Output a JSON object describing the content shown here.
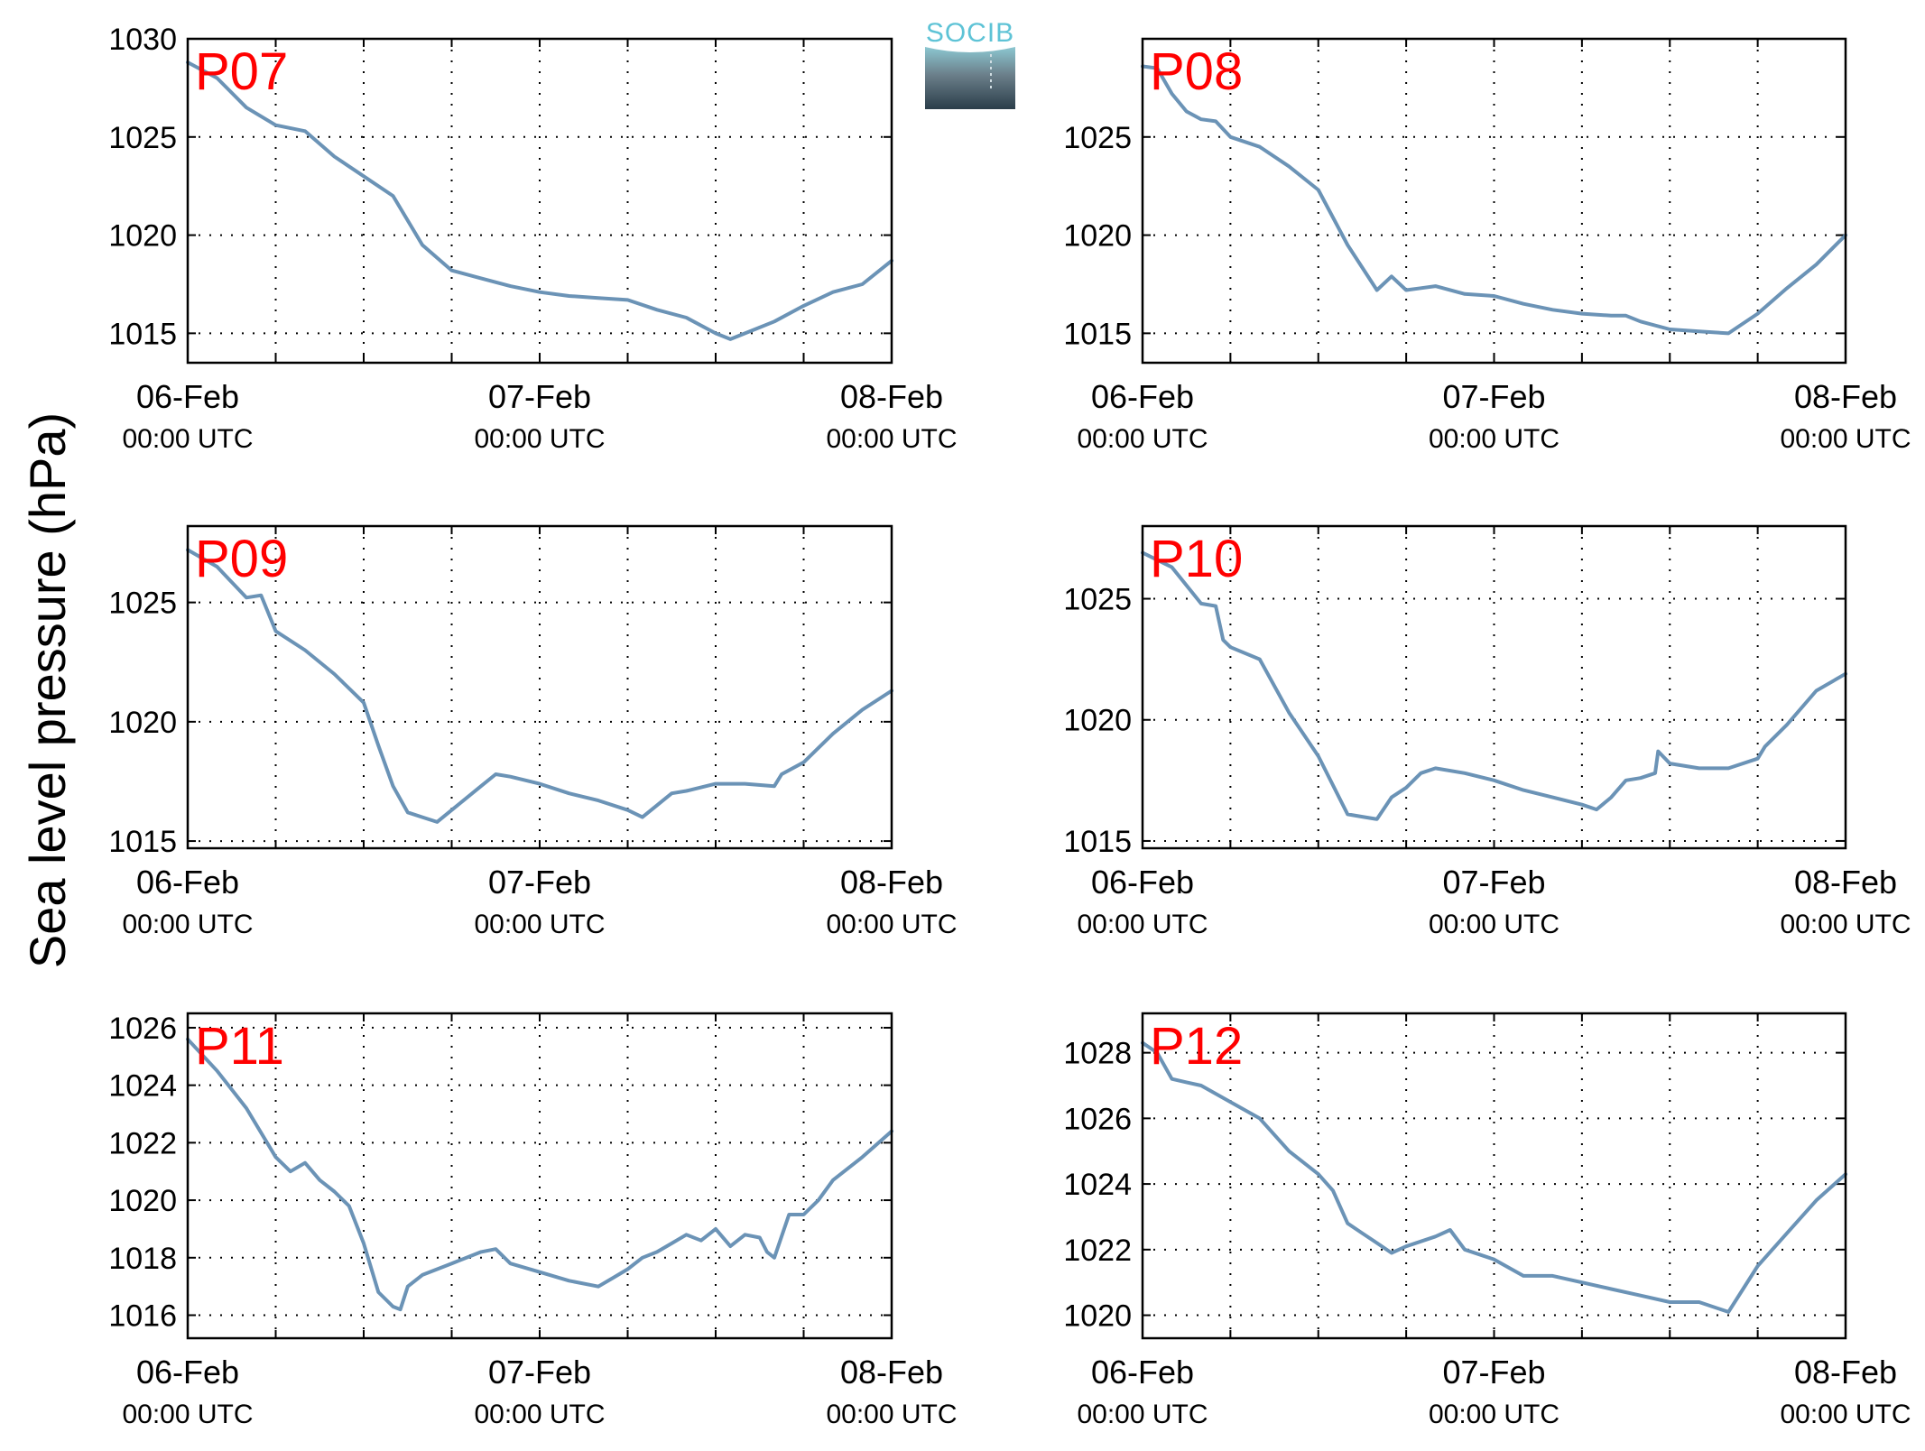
{
  "figure": {
    "ylabel": "Sea level pressure (hPa)",
    "logo_text": "SOCIB"
  },
  "colors": {
    "line": "#6b93b6",
    "panel_label": "#ff0000",
    "grid": "#000000",
    "logo_top": "#8cc7d1",
    "logo_bottom": "#2b3e4a"
  },
  "chart_data": [
    {
      "type": "line",
      "label": "P07",
      "xlim_hours": [
        0,
        48
      ],
      "ylim": [
        1013.5,
        1030
      ],
      "yticks": [
        1015,
        1020,
        1025,
        1030
      ],
      "xticks": [
        {
          "hour": 0,
          "date": "06-Feb",
          "time": "00:00 UTC"
        },
        {
          "hour": 24,
          "date": "07-Feb",
          "time": "00:00 UTC"
        },
        {
          "hour": 48,
          "date": "08-Feb",
          "time": "00:00 UTC"
        }
      ],
      "grid": true,
      "x": [
        0,
        2,
        4,
        6,
        8,
        10,
        12,
        14,
        16,
        18,
        20,
        22,
        24,
        26,
        28,
        30,
        32,
        34,
        36,
        37,
        38,
        40,
        42,
        44,
        46,
        48
      ],
      "values": [
        1028.8,
        1028.0,
        1026.5,
        1025.6,
        1025.3,
        1024.0,
        1023.0,
        1022.0,
        1019.5,
        1018.2,
        1017.8,
        1017.4,
        1017.1,
        1016.9,
        1016.8,
        1016.7,
        1016.2,
        1015.8,
        1015.0,
        1014.7,
        1015.0,
        1015.6,
        1016.4,
        1017.1,
        1017.5,
        1018.7
      ]
    },
    {
      "type": "line",
      "label": "P08",
      "xlim_hours": [
        0,
        48
      ],
      "ylim": [
        1013.5,
        1030
      ],
      "yticks": [
        1015,
        1020,
        1025
      ],
      "xticks": [
        {
          "hour": 0,
          "date": "06-Feb",
          "time": "00:00 UTC"
        },
        {
          "hour": 24,
          "date": "07-Feb",
          "time": "00:00 UTC"
        },
        {
          "hour": 48,
          "date": "08-Feb",
          "time": "00:00 UTC"
        }
      ],
      "grid": true,
      "x": [
        0,
        1,
        2,
        3,
        4,
        5,
        6,
        8,
        10,
        12,
        14,
        16,
        17,
        18,
        19,
        20,
        22,
        24,
        26,
        28,
        30,
        32,
        33,
        34,
        36,
        38,
        40,
        42,
        44,
        46,
        48
      ],
      "values": [
        1028.6,
        1028.5,
        1027.2,
        1026.3,
        1025.9,
        1025.8,
        1025.0,
        1024.5,
        1023.5,
        1022.3,
        1019.5,
        1017.2,
        1017.9,
        1017.2,
        1017.3,
        1017.4,
        1017.0,
        1016.9,
        1016.5,
        1016.2,
        1016.0,
        1015.9,
        1015.9,
        1015.6,
        1015.2,
        1015.1,
        1015.0,
        1016.0,
        1017.3,
        1018.5,
        1020.0
      ]
    },
    {
      "type": "line",
      "label": "P09",
      "xlim_hours": [
        0,
        48
      ],
      "ylim": [
        1014.7,
        1028.2
      ],
      "yticks": [
        1015,
        1020,
        1025
      ],
      "xticks": [
        {
          "hour": 0,
          "date": "06-Feb",
          "time": "00:00 UTC"
        },
        {
          "hour": 24,
          "date": "07-Feb",
          "time": "00:00 UTC"
        },
        {
          "hour": 48,
          "date": "08-Feb",
          "time": "00:00 UTC"
        }
      ],
      "grid": true,
      "x": [
        0,
        2,
        4,
        5,
        6,
        8,
        10,
        12,
        13,
        14,
        15,
        16,
        17,
        18,
        20,
        21,
        22,
        24,
        26,
        28,
        30,
        31,
        32,
        33,
        34,
        36,
        38,
        40,
        40.5,
        42,
        44,
        46,
        48
      ],
      "values": [
        1027.2,
        1026.5,
        1025.2,
        1025.3,
        1023.8,
        1023.0,
        1022.0,
        1020.8,
        1019.0,
        1017.3,
        1016.2,
        1016.0,
        1015.8,
        1016.3,
        1017.3,
        1017.8,
        1017.7,
        1017.4,
        1017.0,
        1016.7,
        1016.3,
        1016.0,
        1016.5,
        1017.0,
        1017.1,
        1017.4,
        1017.4,
        1017.3,
        1017.8,
        1018.3,
        1019.5,
        1020.5,
        1021.3
      ]
    },
    {
      "type": "line",
      "label": "P10",
      "xlim_hours": [
        0,
        48
      ],
      "ylim": [
        1014.7,
        1028.0
      ],
      "yticks": [
        1015,
        1020,
        1025
      ],
      "xticks": [
        {
          "hour": 0,
          "date": "06-Feb",
          "time": "00:00 UTC"
        },
        {
          "hour": 24,
          "date": "07-Feb",
          "time": "00:00 UTC"
        },
        {
          "hour": 48,
          "date": "08-Feb",
          "time": "00:00 UTC"
        }
      ],
      "grid": true,
      "x": [
        0,
        2,
        4,
        5,
        5.5,
        6,
        8,
        10,
        12,
        14,
        15,
        16,
        17,
        18,
        19,
        20,
        22,
        24,
        26,
        28,
        30,
        31,
        32,
        33,
        34,
        35,
        35.2,
        36,
        38,
        40,
        42,
        42.5,
        44,
        46,
        48
      ],
      "values": [
        1026.9,
        1026.3,
        1024.8,
        1024.7,
        1023.3,
        1023.0,
        1022.5,
        1020.3,
        1018.5,
        1016.1,
        1016.0,
        1015.9,
        1016.8,
        1017.2,
        1017.8,
        1018.0,
        1017.8,
        1017.5,
        1017.1,
        1016.8,
        1016.5,
        1016.3,
        1016.8,
        1017.5,
        1017.6,
        1017.8,
        1018.7,
        1018.2,
        1018.0,
        1018.0,
        1018.4,
        1018.9,
        1019.8,
        1021.2,
        1021.9
      ]
    },
    {
      "type": "line",
      "label": "P11",
      "xlim_hours": [
        0,
        48
      ],
      "ylim": [
        1015.2,
        1026.5
      ],
      "yticks": [
        1016,
        1018,
        1020,
        1022,
        1024,
        1026
      ],
      "xticks": [
        {
          "hour": 0,
          "date": "06-Feb",
          "time": "00:00 UTC"
        },
        {
          "hour": 24,
          "date": "07-Feb",
          "time": "00:00 UTC"
        },
        {
          "hour": 48,
          "date": "08-Feb",
          "time": "00:00 UTC"
        }
      ],
      "grid": true,
      "x": [
        0,
        2,
        4,
        6,
        7,
        8,
        9,
        10,
        11,
        12,
        13,
        14,
        14.5,
        15,
        16,
        18,
        20,
        21,
        22,
        24,
        26,
        28,
        29,
        30,
        31,
        32,
        33,
        34,
        35,
        36,
        37,
        38,
        39,
        39.5,
        40,
        41,
        42,
        43,
        44,
        46,
        48
      ],
      "values": [
        1025.6,
        1024.5,
        1023.2,
        1021.5,
        1021.0,
        1021.3,
        1020.7,
        1020.3,
        1019.8,
        1018.5,
        1016.8,
        1016.3,
        1016.2,
        1017.0,
        1017.4,
        1017.8,
        1018.2,
        1018.3,
        1017.8,
        1017.5,
        1017.2,
        1017.0,
        1017.3,
        1017.6,
        1018.0,
        1018.2,
        1018.5,
        1018.8,
        1018.6,
        1019.0,
        1018.4,
        1018.8,
        1018.7,
        1018.2,
        1018.0,
        1019.5,
        1019.5,
        1020.0,
        1020.7,
        1021.5,
        1022.4
      ]
    },
    {
      "type": "line",
      "label": "P12",
      "xlim_hours": [
        0,
        48
      ],
      "ylim": [
        1019.3,
        1029.2
      ],
      "yticks": [
        1020,
        1022,
        1024,
        1026,
        1028
      ],
      "xticks": [
        {
          "hour": 0,
          "date": "06-Feb",
          "time": "00:00 UTC"
        },
        {
          "hour": 24,
          "date": "07-Feb",
          "time": "00:00 UTC"
        },
        {
          "hour": 48,
          "date": "08-Feb",
          "time": "00:00 UTC"
        }
      ],
      "grid": true,
      "x": [
        0,
        1,
        2,
        3,
        4,
        6,
        8,
        10,
        12,
        13,
        14,
        15,
        16,
        17,
        18,
        20,
        21,
        22,
        24,
        26,
        28,
        30,
        32,
        34,
        36,
        38,
        40,
        41,
        42,
        44,
        46,
        48
      ],
      "values": [
        1028.3,
        1028.0,
        1027.2,
        1027.1,
        1027.0,
        1026.5,
        1026.0,
        1025.0,
        1024.3,
        1023.8,
        1022.8,
        1022.5,
        1022.2,
        1021.9,
        1022.1,
        1022.4,
        1022.6,
        1022.0,
        1021.7,
        1021.2,
        1021.2,
        1021.0,
        1020.8,
        1020.6,
        1020.4,
        1020.4,
        1020.1,
        1020.8,
        1021.5,
        1022.5,
        1023.5,
        1024.3
      ]
    }
  ]
}
